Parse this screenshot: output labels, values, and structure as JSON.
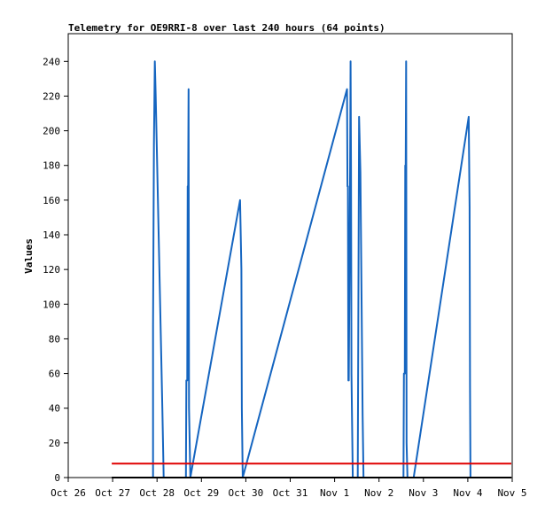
{
  "chart_data": {
    "type": "line",
    "title": "Telemetry for OE9RRI-8 over last 240 hours (64 points)",
    "xlabel": "",
    "ylabel": "Values",
    "ylim": [
      0,
      256
    ],
    "y_ticks": [
      0,
      20,
      40,
      60,
      80,
      100,
      120,
      140,
      160,
      180,
      200,
      220,
      240
    ],
    "x_range_days": [
      0,
      10
    ],
    "x_ticks": [
      {
        "day": 0,
        "label": "Oct 26"
      },
      {
        "day": 1,
        "label": "Oct 27"
      },
      {
        "day": 2,
        "label": "Oct 28"
      },
      {
        "day": 3,
        "label": "Oct 29"
      },
      {
        "day": 4,
        "label": "Oct 30"
      },
      {
        "day": 5,
        "label": "Oct 31"
      },
      {
        "day": 6,
        "label": "Nov 1"
      },
      {
        "day": 7,
        "label": "Nov 2"
      },
      {
        "day": 8,
        "label": "Nov 3"
      },
      {
        "day": 9,
        "label": "Nov 4"
      },
      {
        "day": 10,
        "label": "Nov 5"
      }
    ],
    "grid": false,
    "series": [
      {
        "name": "",
        "color": "#1565c0",
        "points": [
          [
            1.91,
            0
          ],
          [
            1.91,
            88
          ],
          [
            1.93,
            192
          ],
          [
            1.95,
            240
          ],
          [
            1.97,
            220
          ],
          [
            2.12,
            40
          ],
          [
            2.15,
            0
          ],
          [
            2.65,
            0
          ],
          [
            2.66,
            56
          ],
          [
            2.68,
            56
          ],
          [
            2.69,
            168
          ],
          [
            2.7,
            168
          ],
          [
            2.71,
            224
          ],
          [
            2.72,
            40
          ],
          [
            2.75,
            0
          ],
          [
            3.87,
            160
          ],
          [
            3.9,
            120
          ],
          [
            3.91,
            40
          ],
          [
            3.93,
            0
          ],
          [
            6.28,
            224
          ],
          [
            6.29,
            168
          ],
          [
            6.3,
            168
          ],
          [
            6.31,
            56
          ],
          [
            6.32,
            56
          ],
          [
            6.35,
            180
          ],
          [
            6.36,
            240
          ],
          [
            6.37,
            180
          ],
          [
            6.38,
            60
          ],
          [
            6.41,
            0
          ],
          [
            6.52,
            0
          ],
          [
            6.55,
            208
          ],
          [
            6.58,
            176
          ],
          [
            6.63,
            36
          ],
          [
            6.65,
            0
          ],
          [
            7.55,
            0
          ],
          [
            7.56,
            60
          ],
          [
            7.58,
            60
          ],
          [
            7.59,
            180
          ],
          [
            7.6,
            180
          ],
          [
            7.61,
            240
          ],
          [
            7.62,
            20
          ],
          [
            7.64,
            0
          ],
          [
            7.78,
            0
          ],
          [
            9.02,
            208
          ],
          [
            9.04,
            156
          ],
          [
            9.05,
            52
          ],
          [
            9.06,
            0
          ]
        ]
      },
      {
        "name": "",
        "color": "#000000",
        "points": [
          [
            0.98,
            0
          ],
          [
            9.98,
            0
          ]
        ]
      },
      {
        "name": "",
        "color": "#e00000",
        "points": [
          [
            0.98,
            8
          ],
          [
            9.98,
            8
          ]
        ]
      }
    ]
  }
}
